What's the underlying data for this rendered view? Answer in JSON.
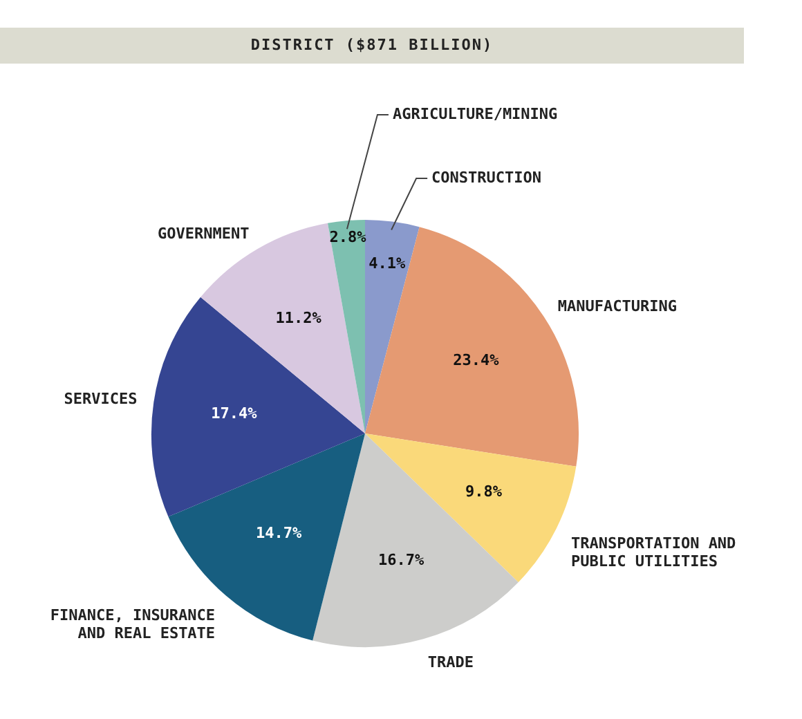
{
  "chart_data": {
    "type": "pie",
    "title": "DISTRICT ($871 BILLION)",
    "categories": [
      "CONSTRUCTION",
      "MANUFACTURING",
      "TRANSPORTATION AND PUBLIC UTILITIES",
      "TRADE",
      "FINANCE, INSURANCE AND REAL ESTATE",
      "SERVICES",
      "GOVERNMENT",
      "AGRICULTURE/MINING"
    ],
    "values": [
      4.1,
      23.4,
      9.8,
      16.7,
      14.7,
      17.4,
      11.2,
      2.8
    ],
    "colors": [
      "#8a9acc",
      "#e59a72",
      "#fad97a",
      "#cdcdcb",
      "#175e80",
      "#354592",
      "#d8c8e0",
      "#7dc0b0"
    ],
    "value_labels": [
      "4.1%",
      "23.4%",
      "9.8%",
      "16.7%",
      "14.7%",
      "17.4%",
      "11.2%",
      "2.8%"
    ],
    "legend": false
  }
}
